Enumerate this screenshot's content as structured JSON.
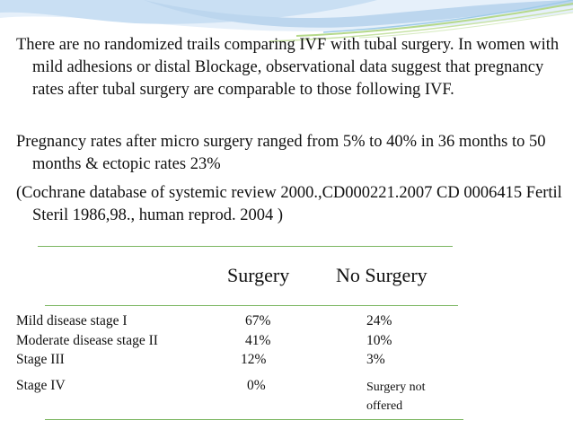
{
  "slide": {
    "paragraphs": [
      "There are no randomized trails comparing IVF with tubal surgery. In women with mild adhesions or distal Blockage, observational data suggest that pregnancy rates after  tubal surgery are comparable to those following IVF.",
      "Pregnancy rates after micro surgery ranged from 5% to 40% in 36 months to 50 months & ectopic rates 23%",
      "(Cochrane database of systemic review 2000.,CD000221.2007 CD 0006415  Fertil Steril 1986,98., human reprod. 2004 )"
    ],
    "table": {
      "headers": {
        "surgery": "Surgery",
        "no_surgery": "No Surgery"
      },
      "rows": [
        {
          "label": "Mild  disease stage I",
          "surgery": "67%",
          "no_surgery": "24%"
        },
        {
          "label": "Moderate disease stage II",
          "surgery": "41%",
          "no_surgery": "10%"
        },
        {
          "label": "Stage III",
          "surgery": "12%",
          "no_surgery": "3%"
        },
        {
          "label": "Stage IV",
          "surgery": "0%",
          "no_surgery": "Surgery not offered"
        }
      ]
    },
    "colors": {
      "rule": "#7bb661",
      "wave_blue": "#bcd6ee",
      "wave_green": "#b5d98a",
      "text": "#111111"
    }
  }
}
